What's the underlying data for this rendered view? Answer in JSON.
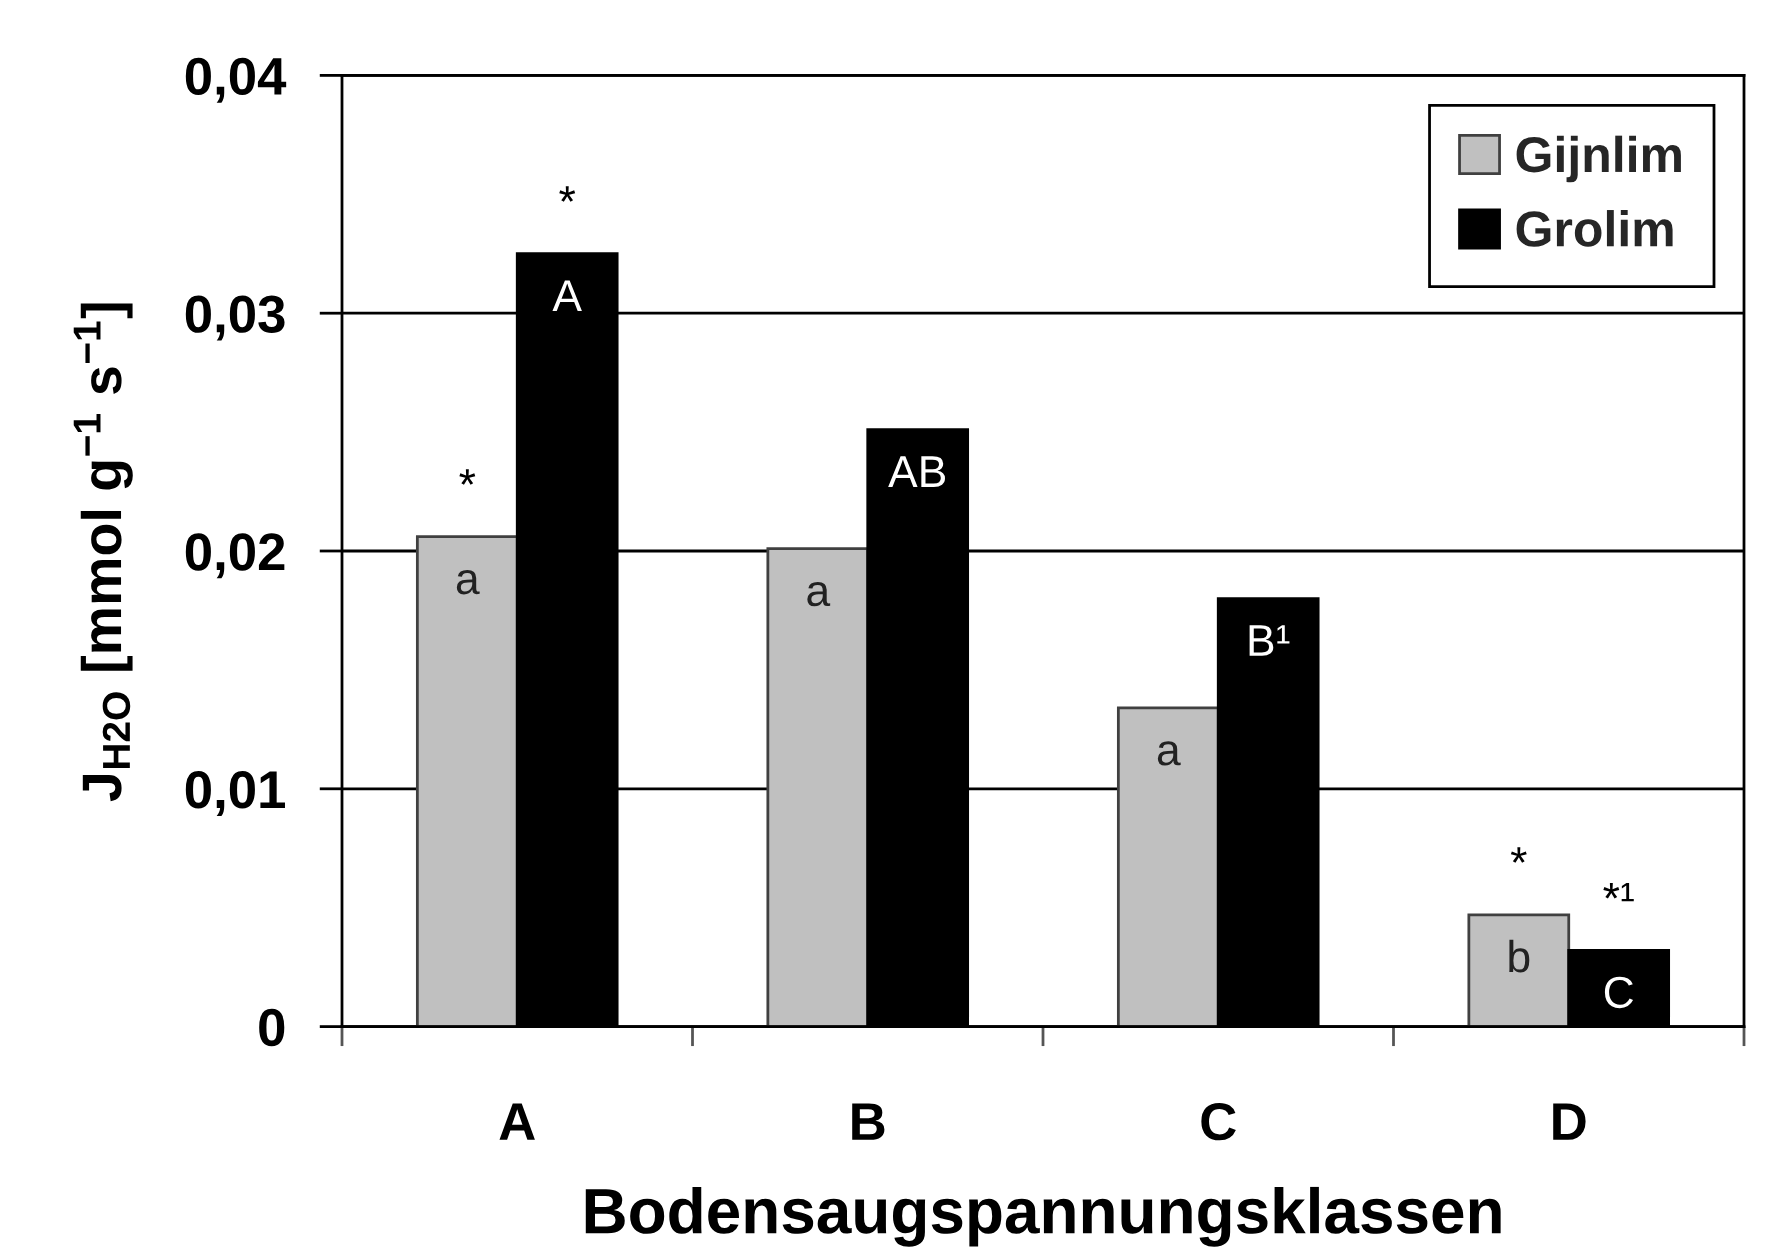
{
  "chart_data": {
    "type": "bar",
    "categories": [
      "A",
      "B",
      "C",
      "D"
    ],
    "series": [
      {
        "name": "Gijnlim",
        "color": "#c0c0c0",
        "values": [
          0.0206,
          0.0201,
          0.0134,
          0.0047
        ],
        "value_labels": [
          "a",
          "a",
          "a",
          "b"
        ]
      },
      {
        "name": "Grolim",
        "color": "#000000",
        "values": [
          0.0325,
          0.0251,
          0.018,
          0.0032
        ],
        "value_labels": [
          "A",
          "AB",
          "B¹",
          "C"
        ]
      }
    ],
    "xlabel": "Bodensaugspannungsklassen",
    "ylabel": "J$_{H2O}$ [mmol g$^{−1}$ s$^{−1}$]",
    "ylim": [
      0,
      0.04
    ],
    "yticks": [
      0,
      {
        "value": 0.01,
        "label": "0,01"
      },
      {
        "value": 0.02,
        "label": "0,02"
      },
      {
        "value": 0.03,
        "label": "0,03"
      },
      {
        "value": 0.04,
        "label": "0,04"
      }
    ],
    "grid": "y",
    "legend": "top right",
    "annotations": [
      {
        "text": "*",
        "x": "A",
        "y": 0.0206
      },
      {
        "text": "*",
        "x": "A",
        "y": 0.0325
      },
      {
        "text": "*",
        "x": "D",
        "y": 0.0047
      },
      {
        "text": "*¹",
        "x": "D",
        "y": 0.0032
      }
    ]
  }
}
